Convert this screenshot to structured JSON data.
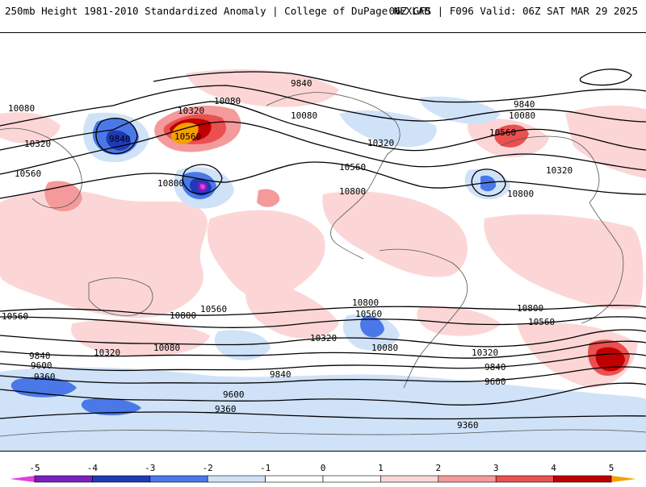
{
  "header": {
    "title_left": "250mb Height 1981-2010 Standardized Anomaly | College of DuPage NEXLAB",
    "title_right": "06Z GFS | F096 Valid: 06Z SAT MAR 29 2025"
  },
  "colors": {
    "neg5": "#e040e0",
    "neg4": "#7a1fc0",
    "neg3": "#1f3ab8",
    "neg2": "#4a78e8",
    "neg1": "#cfe2f8",
    "pos1": "#fcd6d6",
    "pos2": "#f49a9a",
    "pos3": "#ea5050",
    "pos4": "#c00000",
    "pos5": "#f5a000",
    "land": "#ffffff",
    "contour": "#000000"
  },
  "colorbar": {
    "ticks": [
      "-5",
      "-4",
      "-3",
      "-2",
      "-1",
      "0",
      "1",
      "2",
      "3",
      "4",
      "5"
    ]
  },
  "contour_labels": [
    {
      "text": "9840",
      "name": "contour-label-9840"
    },
    {
      "text": "10080",
      "name": "contour-label-10080"
    },
    {
      "text": "10320",
      "name": "contour-label-10320"
    },
    {
      "text": "10560",
      "name": "contour-label-10560"
    },
    {
      "text": "10800",
      "name": "contour-label-10800"
    },
    {
      "text": "9600",
      "name": "contour-label-9600"
    },
    {
      "text": "9360",
      "name": "contour-label-9360"
    }
  ]
}
